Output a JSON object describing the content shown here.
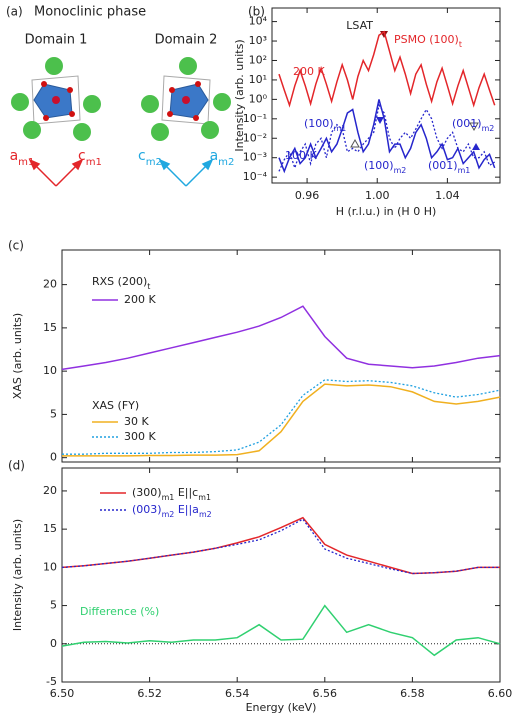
{
  "diagram": {
    "label": "(a)",
    "title": "Monoclinic phase",
    "domains": [
      {
        "title": "Domain 1",
        "axes": [
          [
            {
              "t": "a"
            },
            {
              "t": "m1",
              "sub": true
            }
          ],
          [
            {
              "t": "c"
            },
            {
              "t": "m1",
              "sub": true
            }
          ]
        ]
      },
      {
        "title": "Domain 2",
        "axes": [
          [
            {
              "t": "c"
            },
            {
              "t": "m2",
              "sub": true
            }
          ],
          [
            {
              "t": "a"
            },
            {
              "t": "m2",
              "sub": true
            }
          ]
        ]
      }
    ]
  },
  "chart_data": [
    {
      "type": "line",
      "label": "(b)",
      "xlabel": "H (r.l.u.) in (H 0 H)",
      "ylabel": "Intensity (arb. units)",
      "log_y": true,
      "xlim": [
        0.94,
        1.07
      ],
      "xticks": [
        0.96,
        {
          "value": 1,
          "label": "1.00"
        },
        1.04
      ],
      "ylim": [
        5e-05,
        50000
      ],
      "yticks": [
        {
          "value": 0.0001,
          "label": "10⁻⁴"
        },
        {
          "value": 0.001,
          "label": "10⁻³"
        },
        {
          "value": 0.01,
          "label": "10⁻²"
        },
        {
          "value": 0.1,
          "label": "10⁻¹"
        },
        {
          "value": 1,
          "label": "10⁰"
        },
        {
          "value": 10,
          "label": "10¹"
        },
        {
          "value": 100,
          "label": "10²"
        },
        {
          "value": 1000,
          "label": "10³"
        },
        {
          "value": 10000,
          "label": "10⁴"
        }
      ],
      "x": [
        0.944,
        0.947,
        0.95,
        0.953,
        0.956,
        0.959,
        0.962,
        0.965,
        0.968,
        0.971,
        0.974,
        0.977,
        0.98,
        0.983,
        0.986,
        0.989,
        0.992,
        0.995,
        0.998,
        1.001,
        1.004,
        1.007,
        1.01,
        1.013,
        1.016,
        1.019,
        1.022,
        1.025,
        1.028,
        1.031,
        1.034,
        1.037,
        1.04,
        1.043,
        1.046,
        1.049,
        1.052,
        1.055,
        1.058,
        1.061,
        1.064,
        1.067
      ],
      "series": [
        {
          "name": "200 K",
          "color": "#e3262a",
          "values": [
            20,
            3,
            0.5,
            5,
            30,
            5,
            0.6,
            6,
            40,
            6,
            0.8,
            8,
            60,
            10,
            1,
            15,
            100,
            30,
            200,
            2000,
            3000,
            300,
            30,
            150,
            20,
            2,
            20,
            60,
            6,
            0.8,
            8,
            40,
            5,
            0.6,
            5,
            30,
            4,
            0.5,
            4,
            20,
            3,
            0.5
          ]
        },
        {
          "name": "100 K",
          "color": "#2626cc",
          "values": [
            0.001,
            0.0002,
            0.001,
            0.003,
            0.0005,
            0.001,
            0.005,
            0.001,
            0.003,
            0.01,
            0.002,
            0.005,
            0.03,
            0.2,
            0.3,
            0.02,
            0.002,
            0.005,
            0.05,
            1,
            0.1,
            0.002,
            0.005,
            0.005,
            0.001,
            0.003,
            0.02,
            0.05,
            0.01,
            0.001,
            0.002,
            0.005,
            0.0008,
            0.001,
            0.003,
            0.0005,
            0.001,
            0.002,
            0.0003,
            0.0008,
            0.0015,
            0.0003
          ]
        },
        {
          "color": "#2626cc",
          "style": "dotted",
          "values": [
            0.0002,
            0.0008,
            0.002,
            0.0003,
            0.002,
            0.005,
            0.0005,
            0.005,
            0.01,
            0.001,
            0.02,
            0.05,
            0.03,
            0.002,
            0.003,
            0.002,
            0.005,
            0.01,
            0.02,
            0.5,
            0.2,
            0.01,
            0.003,
            0.01,
            0.02,
            0.01,
            0.03,
            0.1,
            0.3,
            0.1,
            0.01,
            0.003,
            0.01,
            0.02,
            0.003,
            0.002,
            0.005,
            0.001,
            0.001,
            0.002,
            0.0004,
            0.0006
          ]
        }
      ],
      "annotations": [
        {
          "text": "LSAT",
          "color": "#222222"
        },
        {
          "text": [
            {
              "t": "PSMO (100)"
            },
            {
              "t": "t",
              "sub": true
            }
          ],
          "color": "#e3262a"
        },
        {
          "text": [
            {
              "t": "(100)"
            },
            {
              "t": "m1",
              "sub": true
            }
          ],
          "color": "#2626cc"
        },
        {
          "text": [
            {
              "t": "(001)"
            },
            {
              "t": "m2",
              "sub": true
            }
          ],
          "color": "#2626cc"
        },
        {
          "text": [
            {
              "t": "(100)"
            },
            {
              "t": "m2",
              "sub": true
            }
          ],
          "color": "#2626cc"
        },
        {
          "text": [
            {
              "t": "(001)"
            },
            {
              "t": "m1",
              "sub": true
            }
          ],
          "color": "#2626cc"
        }
      ]
    },
    {
      "type": "line",
      "label": "(c)",
      "ylabel": "XAS (arb. units)",
      "legend": "upper left",
      "xlim": [
        6.5,
        6.6
      ],
      "xticks": [
        6.5,
        6.52,
        6.54,
        6.56,
        6.58,
        6.6
      ],
      "ylim": [
        -0.5,
        24
      ],
      "yticks": [
        0,
        5,
        10,
        15,
        20
      ],
      "x": [
        6.5,
        6.505,
        6.51,
        6.515,
        6.52,
        6.525,
        6.53,
        6.535,
        6.54,
        6.545,
        6.55,
        6.555,
        6.56,
        6.565,
        6.57,
        6.575,
        6.58,
        6.585,
        6.59,
        6.595,
        6.6
      ],
      "series": [
        {
          "name": "200 K",
          "color": "#9030e0",
          "values": [
            10.2,
            10.6,
            11.0,
            11.5,
            12.1,
            12.7,
            13.3,
            13.9,
            14.5,
            15.2,
            16.2,
            17.5,
            14.0,
            11.5,
            10.8,
            10.6,
            10.4,
            10.6,
            11.0,
            11.5,
            11.8
          ]
        },
        {
          "name": "30 K",
          "color": "#f0b020",
          "values": [
            0.2,
            0.2,
            0.2,
            0.2,
            0.25,
            0.25,
            0.3,
            0.3,
            0.35,
            0.8,
            3.0,
            6.5,
            8.5,
            8.3,
            8.4,
            8.2,
            7.6,
            6.5,
            6.2,
            6.5,
            7.0
          ]
        },
        {
          "name": "300 K",
          "color": "#20a0e0",
          "style": "dotted",
          "values": [
            0.4,
            0.4,
            0.5,
            0.5,
            0.5,
            0.6,
            0.6,
            0.7,
            0.9,
            1.8,
            3.8,
            7.2,
            9.0,
            8.8,
            8.9,
            8.7,
            8.3,
            7.5,
            7.0,
            7.3,
            7.8
          ]
        }
      ],
      "annotations": [
        {
          "text": [
            {
              "t": "RXS (200)"
            },
            {
              "t": "t",
              "sub": true
            }
          ],
          "color": "#222222"
        },
        {
          "text": "XAS (FY)",
          "color": "#222222"
        }
      ]
    },
    {
      "type": "line",
      "label": "(d)",
      "xlabel": "Energy (keV)",
      "ylabel": "Intensity (arb. units)",
      "legend": "upper left",
      "xlim": [
        6.5,
        6.6
      ],
      "xticks": [
        {
          "value": 6.5,
          "label": "6.50"
        },
        6.52,
        6.54,
        6.56,
        6.58,
        {
          "value": 6.6,
          "label": "6.60"
        }
      ],
      "ylim": [
        -5,
        23
      ],
      "yticks": [
        -5,
        0,
        5,
        10,
        15,
        20
      ],
      "hline": 0,
      "x": [
        6.5,
        6.505,
        6.51,
        6.515,
        6.52,
        6.525,
        6.53,
        6.535,
        6.54,
        6.545,
        6.55,
        6.555,
        6.56,
        6.565,
        6.57,
        6.575,
        6.58,
        6.585,
        6.59,
        6.595,
        6.6
      ],
      "series": [
        {
          "name": [
            {
              "t": "(300)"
            },
            {
              "t": "m1",
              "sub": true
            },
            {
              "t": "  E||c"
            },
            {
              "t": "m1",
              "sub": true
            }
          ],
          "color": "#e3262a",
          "values": [
            10.0,
            10.2,
            10.5,
            10.8,
            11.2,
            11.6,
            12.0,
            12.5,
            13.2,
            14.0,
            15.2,
            16.5,
            13.0,
            11.6,
            10.8,
            10.0,
            9.2,
            9.3,
            9.5,
            10.0,
            10.0
          ]
        },
        {
          "name": [
            {
              "t": "(003)"
            },
            {
              "t": "m2",
              "sub": true
            },
            {
              "t": "  E||a"
            },
            {
              "t": "m2",
              "sub": true
            }
          ],
          "color": "#2626cc",
          "style": "dotted",
          "values": [
            10.0,
            10.2,
            10.5,
            10.8,
            11.2,
            11.6,
            12.0,
            12.5,
            13.0,
            13.6,
            14.8,
            16.3,
            12.4,
            11.2,
            10.5,
            9.8,
            9.2,
            9.3,
            9.5,
            10.0,
            10.0
          ]
        },
        {
          "color": "#30d070",
          "values": [
            -0.3,
            0.2,
            0.3,
            0.1,
            0.4,
            0.2,
            0.5,
            0.5,
            0.8,
            2.5,
            0.5,
            0.6,
            5.0,
            1.5,
            2.5,
            1.5,
            0.8,
            -1.5,
            0.5,
            0.8,
            0.0
          ]
        }
      ],
      "annotations": [
        {
          "text": "Difference (%)",
          "color": "#30d070"
        }
      ]
    }
  ]
}
